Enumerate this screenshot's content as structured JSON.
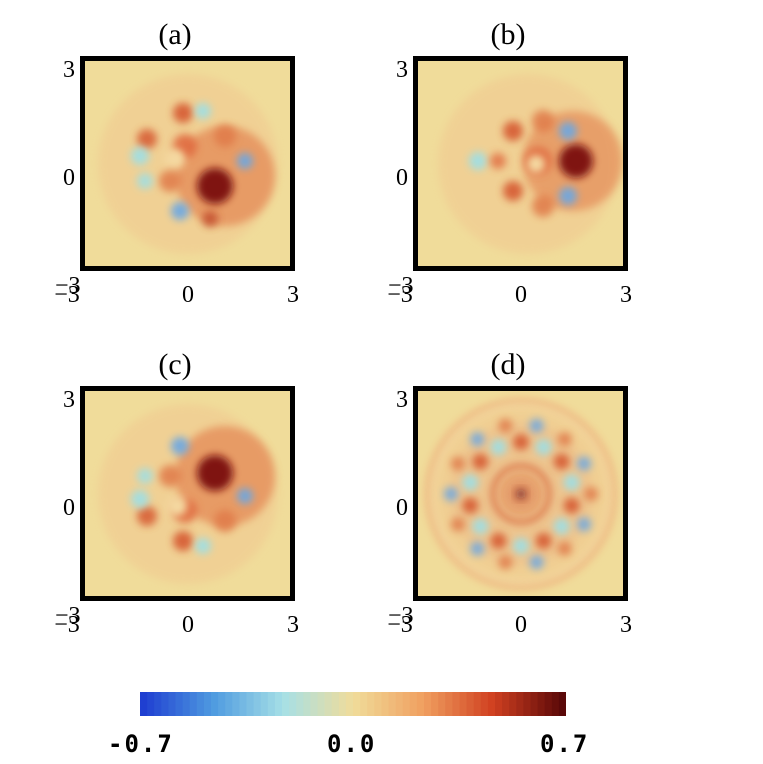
{
  "chart_data": [
    {
      "type": "heatmap",
      "title": "(a)",
      "x_ticks": [
        "−3",
        "0",
        "3"
      ],
      "y_ticks": [
        "3",
        "0",
        "−3"
      ],
      "xlim": [
        -3,
        3
      ],
      "ylim": [
        -3,
        3
      ]
    },
    {
      "type": "heatmap",
      "title": "(b)",
      "x_ticks": [
        "−3",
        "0",
        "3"
      ],
      "y_ticks": [
        "3",
        "0",
        "−3"
      ],
      "xlim": [
        -3,
        3
      ],
      "ylim": [
        -3,
        3
      ]
    },
    {
      "type": "heatmap",
      "title": "(c)",
      "x_ticks": [
        "−3",
        "0",
        "3"
      ],
      "y_ticks": [
        "3",
        "0",
        "−3"
      ],
      "xlim": [
        -3,
        3
      ],
      "ylim": [
        -3,
        3
      ]
    },
    {
      "type": "heatmap",
      "title": "(d)",
      "x_ticks": [
        "−3",
        "0",
        "3"
      ],
      "y_ticks": [
        "3",
        "0",
        "−3"
      ],
      "xlim": [
        -3,
        3
      ],
      "ylim": [
        -3,
        3
      ]
    }
  ],
  "colorbar": {
    "min_label": "-0.7",
    "mid_label": "0.0",
    "max_label": "0.7",
    "range": [
      -0.7,
      0.7
    ],
    "colors": [
      "#1f3fd1",
      "#4f9be0",
      "#a6e0e6",
      "#f0dc9a",
      "#f0a060",
      "#d04020",
      "#5a0808"
    ]
  }
}
